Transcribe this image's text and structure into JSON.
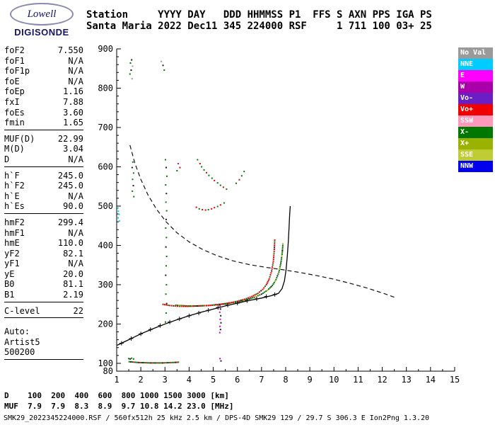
{
  "logo": {
    "brand": "Lowell",
    "product": "DIGISONDE"
  },
  "header": {
    "labels": [
      "Station",
      "YYYY",
      "DAY",
      "DDD",
      "HHMMSS",
      "P1",
      "FFS",
      "S",
      "AXN",
      "PPS",
      "IGA",
      "PS"
    ],
    "values": [
      "Santa Maria",
      "2022",
      "Dec11",
      "345",
      "224000",
      "RSF",
      "",
      "1",
      "711",
      "100",
      "03+",
      "25"
    ]
  },
  "params": {
    "groups": [
      {
        "rows": [
          {
            "label": "foF2",
            "value": "7.550"
          },
          {
            "label": "foF1",
            "value": "N/A"
          },
          {
            "label": "foF1p",
            "value": "N/A"
          },
          {
            "label": "foE",
            "value": "N/A"
          },
          {
            "label": "foEp",
            "value": "1.16"
          },
          {
            "label": "fxI",
            "value": "7.88"
          },
          {
            "label": "foEs",
            "value": "3.60"
          },
          {
            "label": "fmin",
            "value": "1.65"
          }
        ]
      },
      {
        "rows": [
          {
            "label": "MUF(D)",
            "value": "22.99"
          },
          {
            "label": "M(D)",
            "value": "3.04"
          },
          {
            "label": "D",
            "value": "N/A"
          }
        ]
      },
      {
        "rows": [
          {
            "label": "h`F",
            "value": "245.0"
          },
          {
            "label": "h`F2",
            "value": "245.0"
          },
          {
            "label": "h`E",
            "value": "N/A"
          },
          {
            "label": "h`Es",
            "value": "90.0"
          }
        ]
      },
      {
        "rows": [
          {
            "label": "hmF2",
            "value": "299.4"
          },
          {
            "label": "hmF1",
            "value": "N/A"
          },
          {
            "label": "hmE",
            "value": "110.0"
          },
          {
            "label": "yF2",
            "value": "82.1"
          },
          {
            "label": "yF1",
            "value": "N/A"
          },
          {
            "label": "yE",
            "value": "20.0"
          },
          {
            "label": "B0",
            "value": "81.1"
          },
          {
            "label": "B1",
            "value": "2.19"
          }
        ]
      },
      {
        "rows": [
          {
            "label": "C-level",
            "value": "22"
          }
        ]
      },
      {
        "gap_before": true,
        "rows": [
          {
            "label": "Auto:",
            "value": ""
          },
          {
            "label": "Artist5",
            "value": ""
          },
          {
            "label": "500200",
            "value": ""
          }
        ]
      }
    ]
  },
  "legend": {
    "items": [
      {
        "label": "No Val",
        "color": "#9A9A9A"
      },
      {
        "label": "NNE",
        "color": "#00CCFF"
      },
      {
        "label": "E",
        "color": "#FF00FF"
      },
      {
        "label": "W",
        "color": "#AA00AA"
      },
      {
        "label": "Vo-",
        "color": "#6A1FC4"
      },
      {
        "label": "Vo+",
        "color": "#F00000"
      },
      {
        "label": "SSW",
        "color": "#FF99BB"
      },
      {
        "label": "X-",
        "color": "#007700"
      },
      {
        "label": "X+",
        "color": "#99B300"
      },
      {
        "label": "SSE",
        "color": "#BFCC33"
      },
      {
        "label": "NNW",
        "color": "#0000EE"
      }
    ]
  },
  "dmuf": {
    "d_label": "D",
    "muf_label": "MUF",
    "distances": [
      100,
      200,
      400,
      600,
      800,
      1000,
      1500,
      3000
    ],
    "muf": [
      7.9,
      7.9,
      8.3,
      8.9,
      9.7,
      10.8,
      14.2,
      23.0
    ],
    "d_unit": "[km]",
    "muf_unit": "[MHz]"
  },
  "footer": {
    "status": "SMK29_2022345224000.RSF / 560fx512h 25 kHz 2.5 km / DPS-4D SMK29 129 / 29.7 S 306.3 E Ion2Png 1.3.20"
  },
  "chart_data": {
    "type": "scatter",
    "x_axis": {
      "unit": "MHz",
      "range": [
        1,
        15
      ],
      "ticks": [
        1,
        2,
        3,
        4,
        5,
        6,
        7,
        8,
        9,
        10,
        11,
        12,
        13,
        14,
        15
      ]
    },
    "y_axis": {
      "unit": "km",
      "range": [
        80,
        900
      ],
      "ticks": [
        900,
        800,
        700,
        600,
        500,
        400,
        300,
        200,
        100,
        80
      ]
    },
    "grid": false,
    "legend_position": "right",
    "palette": {
      "r": "#E60000",
      "g": "#007700",
      "o": "#99B300",
      "k": "#1A1A1A",
      "m": "#CC00CC",
      "c": "#00CCEE",
      "p": "#FF99BB",
      "gray": "#9A9A9A",
      "b": "#0000EE"
    },
    "o_trace": {
      "name": "F-region O-mode echo trace",
      "cycle": [
        "r",
        "r",
        "r",
        "g",
        "r",
        "r",
        "k",
        "r",
        "r",
        "g",
        "r",
        "r"
      ],
      "points": [
        [
          2.92,
          250
        ],
        [
          3.2,
          247
        ],
        [
          3.6,
          245
        ],
        [
          4.0,
          245
        ],
        [
          4.4,
          246
        ],
        [
          4.8,
          247
        ],
        [
          5.1,
          249
        ],
        [
          5.4,
          251
        ],
        [
          5.7,
          254
        ],
        [
          6.0,
          258
        ],
        [
          6.3,
          263
        ],
        [
          6.6,
          270
        ],
        [
          6.85,
          278
        ],
        [
          7.05,
          288
        ],
        [
          7.2,
          300
        ],
        [
          7.32,
          315
        ],
        [
          7.42,
          335
        ],
        [
          7.49,
          360
        ],
        [
          7.53,
          390
        ],
        [
          7.55,
          418
        ]
      ]
    },
    "x_trace": {
      "name": "F-region X-mode echo trace",
      "cycle": [
        "g",
        "g",
        "o",
        "g",
        "g",
        "k",
        "g"
      ],
      "points": [
        [
          3.45,
          248
        ],
        [
          3.9,
          246
        ],
        [
          4.35,
          246
        ],
        [
          4.8,
          247
        ],
        [
          5.2,
          249
        ],
        [
          5.6,
          252
        ],
        [
          6.0,
          256
        ],
        [
          6.35,
          261
        ],
        [
          6.7,
          268
        ],
        [
          7.0,
          276
        ],
        [
          7.25,
          286
        ],
        [
          7.45,
          298
        ],
        [
          7.6,
          313
        ],
        [
          7.72,
          332
        ],
        [
          7.8,
          355
        ],
        [
          7.86,
          382
        ],
        [
          7.89,
          408
        ]
      ]
    },
    "es_trace": {
      "name": "Sporadic-E echo trace",
      "cycle": [
        "g",
        "k",
        "g",
        "r",
        "g",
        "g",
        "k",
        "r"
      ],
      "points": [
        [
          1.52,
          104
        ],
        [
          1.9,
          102
        ],
        [
          2.4,
          101
        ],
        [
          2.9,
          101
        ],
        [
          3.3,
          102
        ],
        [
          3.62,
          103
        ]
      ]
    },
    "profile": {
      "name": "ARTIST true-height profile",
      "points": [
        [
          1.02,
          146
        ],
        [
          1.5,
          160
        ],
        [
          2.0,
          175
        ],
        [
          2.5,
          188
        ],
        [
          3.0,
          200
        ],
        [
          3.5,
          211
        ],
        [
          4.0,
          221
        ],
        [
          4.5,
          230
        ],
        [
          5.0,
          238
        ],
        [
          5.5,
          246
        ],
        [
          6.0,
          253
        ],
        [
          6.5,
          260
        ],
        [
          7.0,
          266
        ],
        [
          7.4,
          272
        ],
        [
          7.7,
          278
        ],
        [
          7.85,
          290
        ],
        [
          7.95,
          310
        ],
        [
          8.02,
          340
        ],
        [
          8.07,
          375
        ],
        [
          8.11,
          410
        ],
        [
          8.14,
          445
        ],
        [
          8.16,
          472
        ],
        [
          8.18,
          492
        ],
        [
          8.19,
          500
        ]
      ],
      "plus_marks": [
        [
          1.2,
          151
        ],
        [
          1.6,
          163
        ],
        [
          2.0,
          175
        ],
        [
          2.4,
          186
        ],
        [
          2.8,
          196
        ],
        [
          3.2,
          205
        ],
        [
          3.6,
          213
        ],
        [
          4.0,
          221
        ],
        [
          4.4,
          228
        ],
        [
          4.8,
          235
        ],
        [
          5.2,
          242
        ],
        [
          5.6,
          248
        ],
        [
          6.0,
          253
        ],
        [
          6.4,
          259
        ],
        [
          6.8,
          264
        ],
        [
          7.2,
          270
        ],
        [
          7.55,
          275
        ]
      ]
    },
    "muf_curve": {
      "name": "MUF(3000) transmission curve",
      "points": [
        [
          1.55,
          655
        ],
        [
          1.75,
          610
        ],
        [
          2.0,
          568
        ],
        [
          2.3,
          528
        ],
        [
          2.65,
          492
        ],
        [
          3.05,
          460
        ],
        [
          3.5,
          432
        ],
        [
          4.0,
          409
        ],
        [
          4.55,
          390
        ],
        [
          5.15,
          374
        ],
        [
          5.8,
          361
        ],
        [
          6.5,
          351
        ],
        [
          7.2,
          344
        ],
        [
          7.9,
          338
        ],
        [
          8.6,
          331
        ],
        [
          9.3,
          323
        ],
        [
          10.0,
          314
        ],
        [
          10.7,
          303
        ],
        [
          11.4,
          291
        ],
        [
          12.1,
          277
        ],
        [
          12.6,
          266
        ]
      ]
    },
    "scatter": [
      [
        1.05,
        495,
        "c"
      ],
      [
        1.07,
        487,
        "c"
      ],
      [
        1.1,
        479,
        "c"
      ],
      [
        1.06,
        470,
        "c"
      ],
      [
        1.11,
        462,
        "c"
      ],
      [
        1.62,
        872,
        "k"
      ],
      [
        1.57,
        864,
        "g"
      ],
      [
        1.66,
        856,
        "gray"
      ],
      [
        1.6,
        846,
        "k"
      ],
      [
        1.55,
        836,
        "g"
      ],
      [
        1.64,
        824,
        "gray"
      ],
      [
        2.85,
        868,
        "gray"
      ],
      [
        2.92,
        858,
        "k"
      ],
      [
        2.97,
        846,
        "g"
      ],
      [
        1.67,
        612,
        "g"
      ],
      [
        1.64,
        598,
        "k"
      ],
      [
        1.7,
        584,
        "g"
      ],
      [
        1.66,
        568,
        "g"
      ],
      [
        1.69,
        552,
        "k"
      ],
      [
        1.65,
        538,
        "g"
      ],
      [
        1.71,
        524,
        "g"
      ],
      [
        3.02,
        618,
        "g"
      ],
      [
        3.05,
        598,
        "k"
      ],
      [
        3.08,
        576,
        "g"
      ],
      [
        3.03,
        554,
        "g"
      ],
      [
        3.06,
        532,
        "k"
      ],
      [
        3.04,
        510,
        "g"
      ],
      [
        3.07,
        488,
        "g"
      ],
      [
        3.05,
        466,
        "k"
      ],
      [
        3.03,
        444,
        "g"
      ],
      [
        3.06,
        420,
        "g"
      ],
      [
        3.04,
        396,
        "k"
      ],
      [
        3.07,
        372,
        "g"
      ],
      [
        3.05,
        348,
        "g"
      ],
      [
        3.03,
        324,
        "k"
      ],
      [
        3.06,
        300,
        "g"
      ],
      [
        3.04,
        276,
        "g"
      ],
      [
        3.07,
        252,
        "k"
      ],
      [
        3.05,
        228,
        "g"
      ],
      [
        3.02,
        205,
        "g"
      ],
      [
        5.28,
        246,
        "m"
      ],
      [
        5.3,
        238,
        "k"
      ],
      [
        5.27,
        230,
        "m"
      ],
      [
        5.31,
        221,
        "k"
      ],
      [
        5.29,
        212,
        "m"
      ],
      [
        5.32,
        203,
        "k"
      ],
      [
        5.28,
        194,
        "m"
      ],
      [
        5.3,
        186,
        "k"
      ],
      [
        5.27,
        178,
        "m"
      ],
      [
        5.28,
        112,
        "m"
      ],
      [
        5.32,
        106,
        "k"
      ],
      [
        4.35,
        618,
        "g"
      ],
      [
        4.45,
        608,
        "r"
      ],
      [
        4.52,
        600,
        "g"
      ],
      [
        4.62,
        592,
        "g"
      ],
      [
        4.72,
        585,
        "r"
      ],
      [
        4.82,
        578,
        "g"
      ],
      [
        4.95,
        571,
        "g"
      ],
      [
        5.05,
        565,
        "r"
      ],
      [
        5.18,
        559,
        "g"
      ],
      [
        5.3,
        553,
        "g"
      ],
      [
        5.42,
        548,
        "r"
      ],
      [
        5.55,
        543,
        "g"
      ],
      [
        5.95,
        558,
        "g"
      ],
      [
        6.08,
        567,
        "r"
      ],
      [
        6.18,
        577,
        "g"
      ],
      [
        6.28,
        588,
        "g"
      ],
      [
        3.55,
        608,
        "m"
      ],
      [
        3.62,
        598,
        "r"
      ],
      [
        3.5,
        590,
        "g"
      ],
      [
        4.3,
        497,
        "r"
      ],
      [
        4.42,
        493,
        "g"
      ],
      [
        4.55,
        491,
        "r"
      ],
      [
        4.68,
        490,
        "r"
      ],
      [
        4.8,
        491,
        "g"
      ],
      [
        4.93,
        493,
        "r"
      ],
      [
        5.05,
        496,
        "r"
      ],
      [
        5.18,
        499,
        "g"
      ],
      [
        5.3,
        503,
        "r"
      ],
      [
        5.45,
        508,
        "g"
      ],
      [
        1.5,
        112,
        "g"
      ],
      [
        1.56,
        111,
        "k"
      ],
      [
        1.62,
        113,
        "g"
      ],
      [
        1.7,
        111,
        "g"
      ]
    ]
  }
}
